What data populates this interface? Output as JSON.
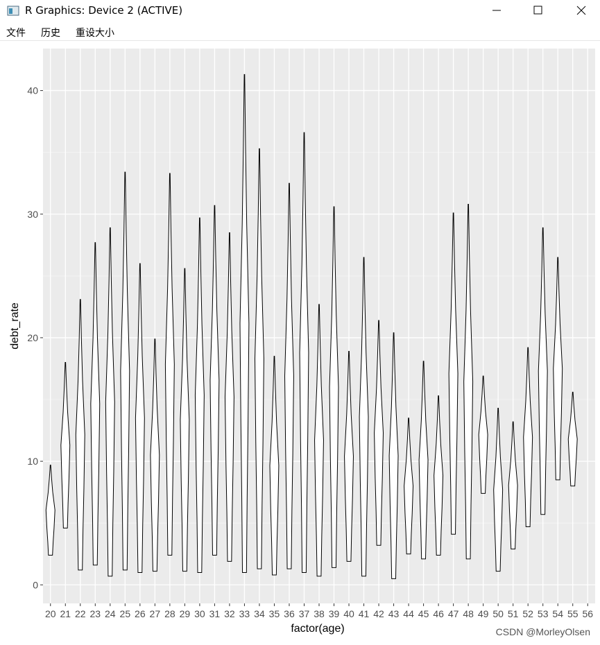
{
  "window": {
    "title": "R Graphics: Device 2 (ACTIVE)",
    "menu": [
      "文件",
      "历史",
      "重设大小"
    ]
  },
  "watermark": "CSDN @MorleyOlsen",
  "chart_data": {
    "type": "violin",
    "x_label": "factor(age)",
    "y_label": "debt_rate",
    "categories": [
      "20",
      "21",
      "22",
      "23",
      "24",
      "25",
      "26",
      "27",
      "28",
      "29",
      "30",
      "31",
      "32",
      "33",
      "34",
      "35",
      "36",
      "37",
      "38",
      "39",
      "40",
      "41",
      "42",
      "43",
      "44",
      "45",
      "46",
      "47",
      "48",
      "49",
      "50",
      "51",
      "52",
      "53",
      "54",
      "55",
      "56"
    ],
    "series": [
      {
        "color": "#000000",
        "min": [
          2.4,
          4.6,
          1.2,
          1.6,
          0.7,
          1.2,
          1.0,
          1.1,
          2.4,
          1.1,
          1.0,
          2.4,
          1.9,
          1.0,
          1.3,
          0.8,
          1.3,
          1.0,
          0.7,
          1.4,
          1.9,
          0.7,
          3.2,
          0.5,
          2.5,
          2.1,
          2.4,
          4.1,
          2.1,
          7.4,
          1.1,
          2.9,
          4.7,
          5.7,
          8.5,
          8.0,
          null
        ],
        "max": [
          9.7,
          18.0,
          23.1,
          27.7,
          28.9,
          33.4,
          26.0,
          19.9,
          33.3,
          25.6,
          29.7,
          30.7,
          28.5,
          41.3,
          35.3,
          18.5,
          32.5,
          36.6,
          22.7,
          30.6,
          18.9,
          26.5,
          21.4,
          20.4,
          13.5,
          18.1,
          15.3,
          30.1,
          30.8,
          16.9,
          14.3,
          13.2,
          19.2,
          28.9,
          26.5,
          15.6,
          null
        ]
      }
    ],
    "ylim": [
      -1.5,
      43.4
    ],
    "yticks": [
      0,
      10,
      20,
      30,
      40
    ],
    "y_minor_ticks": [
      5,
      15,
      25,
      35
    ],
    "grid": true
  }
}
